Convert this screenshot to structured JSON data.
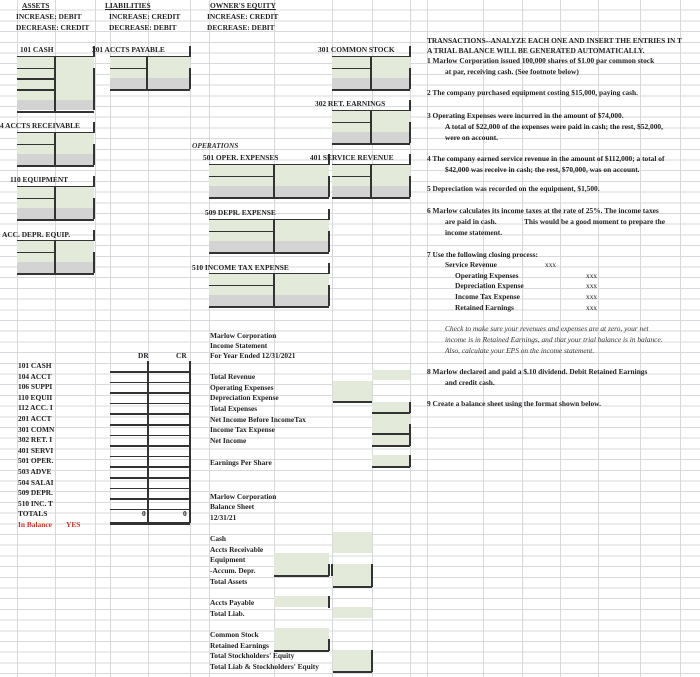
{
  "headers": {
    "assets": {
      "title": "ASSETS",
      "increase": "INCREASE:  DEBIT",
      "decrease": "DECREASE: CREDIT"
    },
    "liabilities": {
      "title": "LIABILITIES",
      "increase": "INCREASE:  CREDIT",
      "decrease": "DECREASE: DEBIT"
    },
    "equity": {
      "title": "OWNER'S EQUITY",
      "increase": "INCREASE:  CREDIT",
      "decrease": "DECREASE: DEBIT"
    }
  },
  "operations_label": "OPERATIONS",
  "t_accounts": {
    "cash": "101 CASH",
    "accts_payable": "201 ACCTS PAYABLE",
    "common_stock": "301 COMMON STOCK",
    "ret_earnings": "302 RET. EARNINGS",
    "accts_receivable": "4 ACCTS RECEIVABLE",
    "oper_expenses": "501 OPER. EXPENSES",
    "service_revenue": "401 SERVICE REVENUE",
    "equipment": "110 EQUIPMENT",
    "depr_expense": "509 DEPR. EXPENSE",
    "acc_depr_equip": "ACC. DEPR. EQUIP.",
    "income_tax_expense": "510 INCOME TAX EXPENSE"
  },
  "colors": {
    "green_cell": "#e3ead9",
    "gray_cell": "#d3d3d3",
    "in_balance": "#c0392b"
  },
  "transactions": {
    "title1": "TRANSACTIONS--ANALYZE EACH ONE AND INSERT THE ENTRIES IN T",
    "title2": "A TRIAL BALANCE WILL BE GENERATED AUTOMATICALLY.",
    "t1a": "1  Marlow Corporation issued 100,000 shares of $1.00 par common stock",
    "t1b": "at par, receiving cash.   (See footnote below)",
    "t2": "2  The company purchased equipment costing $15,000, paying cash.",
    "t3a": "3  Operating Expenses were incurred in the amount of  $74,000.",
    "t3b": "A total of $22,000 of the expenses were paid in cash; the rest, $52,000,",
    "t3c": "were on account.",
    "t4a": "4  The company earned service revenue in the amount of $112,000; a total of",
    "t4b": "$42,000 was receive in cash; the rest, $70,000, was on account.",
    "t5": "5  Depreciation was recorded on the equipment, $1,500.",
    "t6a": "6  Marlow calculates its income taxes at the rate of 25%.  The income taxes",
    "t6b": "are paid in cash.",
    "t6c": "This would be a good moment to prepare the",
    "t6d": "income statement.",
    "t7": "7  Use the following closing process:",
    "closing": [
      {
        "label": "Service Revenue",
        "value": "xxx"
      },
      {
        "label": "Operating Expenses",
        "value": "xxx"
      },
      {
        "label": "Depreciation Expense",
        "value": "xxx"
      },
      {
        "label": "Income Tax Expense",
        "value": "xxx"
      },
      {
        "label": "Retained Earnings",
        "value": "xxx"
      }
    ],
    "check1": "Check to make sure your revenues and expenses are at zero, your net",
    "check2": "income is in Retained Earnings, and that your trial balance is in balance.",
    "check3": "Also, calculate your EPS on the income statement.",
    "t8a": "8  Marlow declared and paid a $.10 dividend.  Debit Retained Earnings",
    "t8b": "and credit cash.",
    "t9": "9  Create a balance sheet using the format shown below."
  },
  "trial_balance": {
    "dr_label": "DR",
    "cr_label": "CR",
    "accounts": [
      "101 CASH",
      "104 ACCT",
      "106 SUPPI",
      "110 EQUII",
      "112 ACC. I",
      "201 ACCT",
      "301 COMN",
      "302 RET. I",
      "401 SERVI",
      "501 OPER.",
      "503 ADVE",
      "504 SALAI",
      "509 DEPR.",
      "510 INC. T"
    ],
    "totals_label": "TOTALS",
    "total_dr": "0",
    "total_cr": "0",
    "in_balance_label": "In Balance",
    "in_balance_value": "YES"
  },
  "income_statement": {
    "company": "Marlow Corporation",
    "title": "Income Statement",
    "period": "For Year Ended 12/31/2021",
    "lines": [
      "Total Revenue",
      "Operating Expenses",
      "Depreciation Expense",
      "Total Expenses",
      "Net Income Before IncomeTax",
      "Income Tax Expense",
      "Net Income"
    ],
    "eps": "Earnings Per Share"
  },
  "balance_sheet": {
    "company": "Marlow Corporation",
    "title": "Balance Sheet",
    "date": "12/31/21",
    "cash": "Cash",
    "ar": "Accts Receivable",
    "equipment": "Equipment",
    "accum_depr": "-Accum. Depr.",
    "total_assets": "Total Assets",
    "ap": "Accts Payable",
    "total_liab": "Total Liab.",
    "common_stock": "Common Stock",
    "retained_earnings": "Retained Earnings",
    "total_se": "Total Stockholders' Equity",
    "total_liab_se": "Total Liab & Stockholders' Equity"
  }
}
